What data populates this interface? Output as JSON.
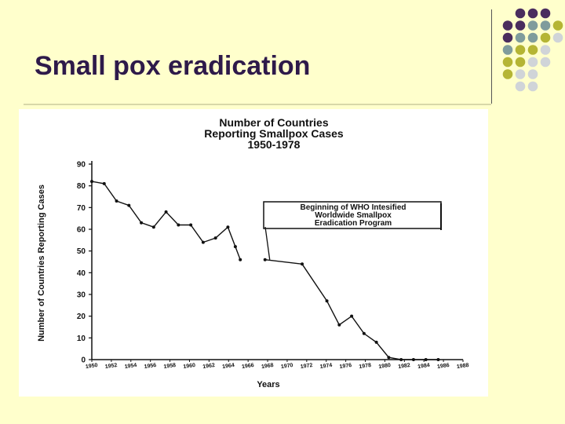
{
  "slide": {
    "title": "Small pox eradication"
  },
  "decor": {
    "dot_colors": [
      "#4a2d5e",
      "#7f9c9c",
      "#b5b534",
      "#d0d4d8"
    ],
    "dot_rows": [
      [
        null,
        0,
        0,
        0,
        null
      ],
      [
        0,
        0,
        1,
        1,
        2
      ],
      [
        0,
        1,
        1,
        2,
        3
      ],
      [
        1,
        2,
        2,
        3,
        null
      ],
      [
        2,
        2,
        3,
        3,
        null
      ],
      [
        2,
        3,
        3,
        null,
        null
      ],
      [
        null,
        3,
        3,
        null,
        null
      ]
    ]
  },
  "chart_data": {
    "type": "line",
    "title_lines": [
      "Number of Countries",
      "Reporting Smallpox Cases",
      "1950-1978"
    ],
    "xlabel": "Years",
    "ylabel": "Number of Countries Reporting Cases",
    "xlim": [
      1950,
      1980
    ],
    "ylim": [
      0,
      90
    ],
    "y_ticks": [
      0,
      10,
      20,
      30,
      40,
      50,
      60,
      70,
      80,
      90
    ],
    "x_ticks": [
      "1950",
      "1952",
      "1954",
      "1956",
      "1958",
      "1960",
      "1962",
      "1964",
      "1966",
      "1968",
      "1970",
      "1972",
      "1974",
      "1976",
      "1978",
      "1980",
      "1982",
      "1984",
      "1986",
      "1988"
    ],
    "series": [
      {
        "x": [
          1950,
          1951,
          1952,
          1953,
          1954,
          1955,
          1956,
          1957,
          1958,
          1959,
          1960,
          1961,
          1961.6,
          1962
        ],
        "y": [
          82,
          81,
          73,
          71,
          63,
          61,
          68,
          62,
          62,
          54,
          56,
          61,
          52,
          46
        ]
      },
      {
        "x": [
          1964,
          1967,
          1969,
          1970,
          1971,
          1972,
          1973,
          1974,
          1975,
          1976,
          1977,
          1978
        ],
        "y": [
          46,
          44,
          27,
          16,
          20,
          12,
          8,
          1,
          0,
          0,
          0,
          0
        ]
      }
    ],
    "annotation": {
      "lines": [
        "Beginning of WHO Intesified",
        "Worldwide Smallpox",
        "Eradication Program"
      ],
      "x": 1967,
      "y": 44
    }
  }
}
